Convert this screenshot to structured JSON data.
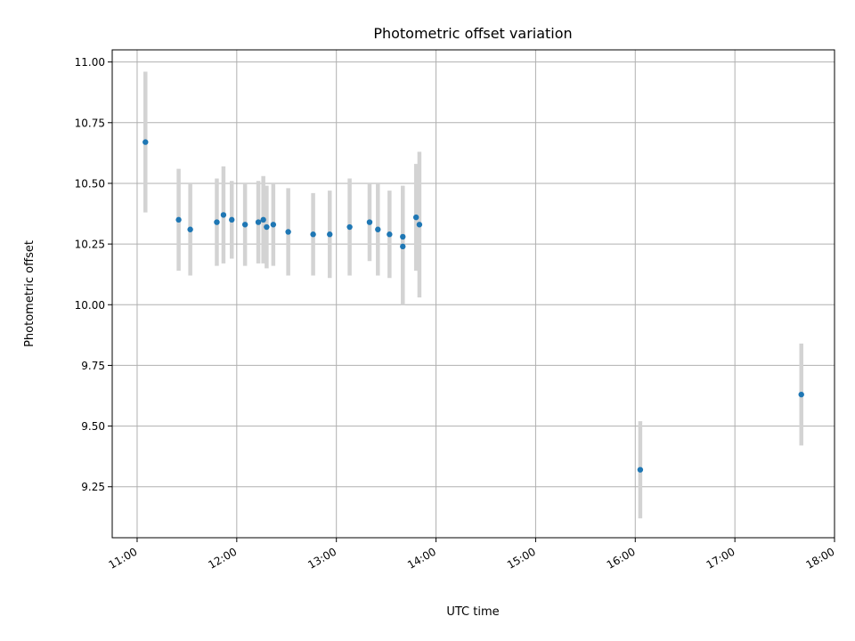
{
  "chart_data": {
    "type": "scatter",
    "title": "Photometric offset variation",
    "xlabel": "UTC time",
    "ylabel": "Photometric offset",
    "xlim": [
      "10:45",
      "18:00"
    ],
    "ylim": [
      9.04,
      11.05
    ],
    "grid": true,
    "x_ticks": [
      "11:00",
      "12:00",
      "13:00",
      "14:00",
      "15:00",
      "16:00",
      "17:00",
      "18:00"
    ],
    "y_ticks": [
      "9.25",
      "9.50",
      "9.75",
      "10.00",
      "10.25",
      "10.50",
      "10.75",
      "11.00"
    ],
    "colors": {
      "point": "#1f77b4",
      "errorbar": "#d3d3d3",
      "grid": "#b0b0b0"
    },
    "series": [
      {
        "points": [
          {
            "t": "11:05",
            "y": 10.67,
            "err": 0.29
          },
          {
            "t": "11:25",
            "y": 10.35,
            "err": 0.21
          },
          {
            "t": "11:32",
            "y": 10.31,
            "err": 0.19
          },
          {
            "t": "11:48",
            "y": 10.34,
            "err": 0.18
          },
          {
            "t": "11:52",
            "y": 10.37,
            "err": 0.2
          },
          {
            "t": "11:57",
            "y": 10.35,
            "err": 0.16
          },
          {
            "t": "12:05",
            "y": 10.33,
            "err": 0.17
          },
          {
            "t": "12:13",
            "y": 10.34,
            "err": 0.17
          },
          {
            "t": "12:16",
            "y": 10.35,
            "err": 0.18
          },
          {
            "t": "12:18",
            "y": 10.32,
            "err": 0.17
          },
          {
            "t": "12:22",
            "y": 10.33,
            "err": 0.17
          },
          {
            "t": "12:31",
            "y": 10.3,
            "err": 0.18
          },
          {
            "t": "12:46",
            "y": 10.29,
            "err": 0.17
          },
          {
            "t": "12:56",
            "y": 10.29,
            "err": 0.18
          },
          {
            "t": "13:08",
            "y": 10.32,
            "err": 0.2
          },
          {
            "t": "13:20",
            "y": 10.34,
            "err": 0.16
          },
          {
            "t": "13:25",
            "y": 10.31,
            "err": 0.19
          },
          {
            "t": "13:32",
            "y": 10.29,
            "err": 0.18
          },
          {
            "t": "13:40",
            "y": 10.28,
            "err": 0.21
          },
          {
            "t": "13:40",
            "y": 10.24,
            "err": 0.24
          },
          {
            "t": "13:48",
            "y": 10.36,
            "err": 0.22
          },
          {
            "t": "13:50",
            "y": 10.33,
            "err": 0.3
          },
          {
            "t": "16:03",
            "y": 9.32,
            "err": 0.2
          },
          {
            "t": "17:40",
            "y": 9.63,
            "err": 0.21
          }
        ]
      }
    ]
  }
}
